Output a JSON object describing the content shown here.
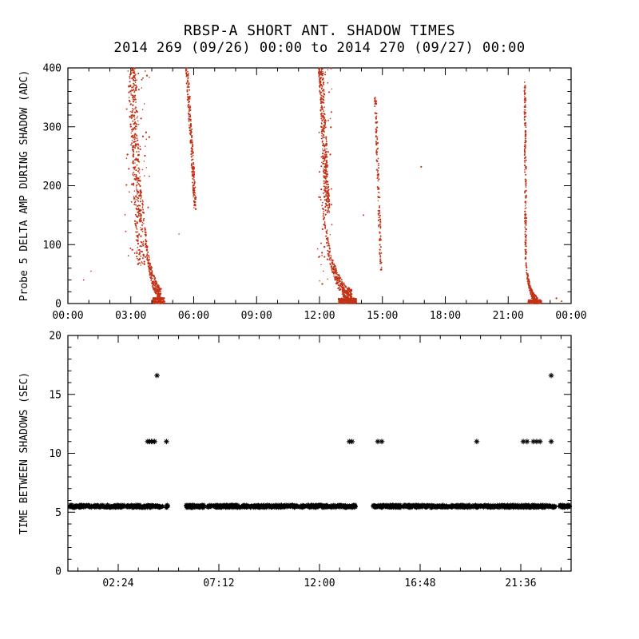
{
  "colors": {
    "background": "#ffffff",
    "axis": "#000000",
    "top_points": "#c23318",
    "bottom_points": "#000000"
  },
  "chart_data": [
    {
      "type": "scatter",
      "panel": "top",
      "title": "RBSP-A SHORT ANT. SHADOW TIMES",
      "subtitle": "2014 269 (09/26) 00:00 to 2014 270 (09/27) 00:00",
      "xlabel": "",
      "ylabel": "Probe 5 DELTA AMP DURING SHADOW (ADC)",
      "xlim": [
        0,
        24
      ],
      "ylim": [
        0,
        400
      ],
      "grid": false,
      "marker": "dot",
      "point_color": "#c23318",
      "x_ticks": [
        {
          "v": 0,
          "label": "00:00"
        },
        {
          "v": 3,
          "label": "03:00"
        },
        {
          "v": 6,
          "label": "06:00"
        },
        {
          "v": 9,
          "label": "09:00"
        },
        {
          "v": 12,
          "label": "12:00"
        },
        {
          "v": 15,
          "label": "15:00"
        },
        {
          "v": 18,
          "label": "18:00"
        },
        {
          "v": 21,
          "label": "21:00"
        },
        {
          "v": 24,
          "label": "00:00"
        }
      ],
      "x_minor_step": 1,
      "y_ticks": [
        {
          "v": 0,
          "label": "0"
        },
        {
          "v": 100,
          "label": "100"
        },
        {
          "v": 200,
          "label": "200"
        },
        {
          "v": 300,
          "label": "300"
        },
        {
          "v": 400,
          "label": "400"
        }
      ],
      "y_minor_step": 20,
      "clusters": [
        {
          "kind": "band",
          "t": [
            2.85,
            3.22
          ],
          "v": [
            65,
            400
          ],
          "tilt": 0.45,
          "n": 380
        },
        {
          "kind": "tail",
          "t": [
            2.72,
            3.9
          ],
          "v": [
            60,
            400
          ],
          "n": 70
        },
        {
          "kind": "curve",
          "t": [
            3.55,
            4.45
          ],
          "v0": 175,
          "tau": 0.34,
          "jv": 28,
          "n": 260
        },
        {
          "kind": "tail",
          "t": [
            4.05,
            4.62
          ],
          "v": [
            0,
            10
          ],
          "n": 170
        },
        {
          "kind": "band",
          "t": [
            5.62,
            5.74
          ],
          "v": [
            160,
            400
          ],
          "tilt": 0.4,
          "n": 230
        },
        {
          "kind": "band",
          "t": [
            11.95,
            12.18
          ],
          "v": [
            150,
            400
          ],
          "tilt": 0.32,
          "n": 330
        },
        {
          "kind": "tail",
          "t": [
            11.9,
            12.6
          ],
          "v": [
            30,
            400
          ],
          "n": 60
        },
        {
          "kind": "curve",
          "t": [
            12.15,
            13.55
          ],
          "v0": 160,
          "tau": 0.52,
          "jv": 26,
          "n": 330
        },
        {
          "kind": "tail",
          "t": [
            12.9,
            13.75
          ],
          "v": [
            0,
            9
          ],
          "n": 240
        },
        {
          "kind": "band",
          "t": [
            14.62,
            14.72
          ],
          "v": [
            50,
            350
          ],
          "tilt": 0.28,
          "n": 140
        },
        {
          "kind": "band",
          "t": [
            21.76,
            21.83
          ],
          "v": [
            62,
            378
          ],
          "tilt": 0.05,
          "n": 170
        },
        {
          "kind": "curve",
          "t": [
            21.84,
            22.4
          ],
          "v0": 70,
          "tau": 0.2,
          "jv": 14,
          "n": 180
        },
        {
          "kind": "tail",
          "t": [
            21.95,
            22.6
          ],
          "v": [
            0,
            6
          ],
          "n": 150
        }
      ],
      "extra_points": [
        [
          0.75,
          40
        ],
        [
          1.1,
          55
        ],
        [
          5.3,
          118
        ],
        [
          14.1,
          150
        ],
        [
          16.85,
          232
        ],
        [
          23.3,
          9
        ],
        [
          23.55,
          4
        ]
      ]
    },
    {
      "type": "scatter",
      "panel": "bottom",
      "title": "",
      "xlabel": "",
      "ylabel": "TIME BETWEEN SHADOWS (SEC)",
      "xlim": [
        0,
        24
      ],
      "ylim": [
        0,
        20
      ],
      "grid": false,
      "marker": "asterisk",
      "point_color": "#000000",
      "x_ticks": [
        {
          "v": 2.4,
          "label": "02:24"
        },
        {
          "v": 7.2,
          "label": "07:12"
        },
        {
          "v": 12,
          "label": "12:00"
        },
        {
          "v": 16.8,
          "label": "16:48"
        },
        {
          "v": 21.6,
          "label": "21:36"
        }
      ],
      "x_minor_step": 0.96,
      "y_ticks": [
        {
          "v": 0,
          "label": "0"
        },
        {
          "v": 5,
          "label": "5"
        },
        {
          "v": 10,
          "label": "10"
        },
        {
          "v": 15,
          "label": "15"
        },
        {
          "v": 20,
          "label": "20"
        }
      ],
      "y_minor_step": 1,
      "base_value": 5.5,
      "band_jitter": 0.24,
      "band_segments": [
        {
          "t": [
            0.03,
            4.55
          ],
          "n": 320
        },
        {
          "t": [
            4.66,
            4.78
          ],
          "n": 8
        },
        {
          "t": [
            5.62,
            13.72
          ],
          "n": 580
        },
        {
          "t": [
            14.55,
            23.25
          ],
          "n": 620
        },
        {
          "t": [
            23.45,
            23.95
          ],
          "n": 40
        }
      ],
      "outlier_points": [
        {
          "t": 3.8,
          "v": 11
        },
        {
          "t": 3.9,
          "v": 11
        },
        {
          "t": 3.98,
          "v": 11
        },
        {
          "t": 4.06,
          "v": 11
        },
        {
          "t": 4.14,
          "v": 11
        },
        {
          "t": 4.7,
          "v": 11
        },
        {
          "t": 13.42,
          "v": 11
        },
        {
          "t": 13.55,
          "v": 11
        },
        {
          "t": 14.78,
          "v": 11
        },
        {
          "t": 14.97,
          "v": 11
        },
        {
          "t": 19.5,
          "v": 11
        },
        {
          "t": 21.72,
          "v": 11
        },
        {
          "t": 21.9,
          "v": 11
        },
        {
          "t": 22.2,
          "v": 11
        },
        {
          "t": 22.36,
          "v": 11
        },
        {
          "t": 22.52,
          "v": 11
        },
        {
          "t": 23.05,
          "v": 11
        },
        {
          "t": 4.25,
          "v": 16.6
        },
        {
          "t": 23.05,
          "v": 16.6
        }
      ]
    }
  ]
}
